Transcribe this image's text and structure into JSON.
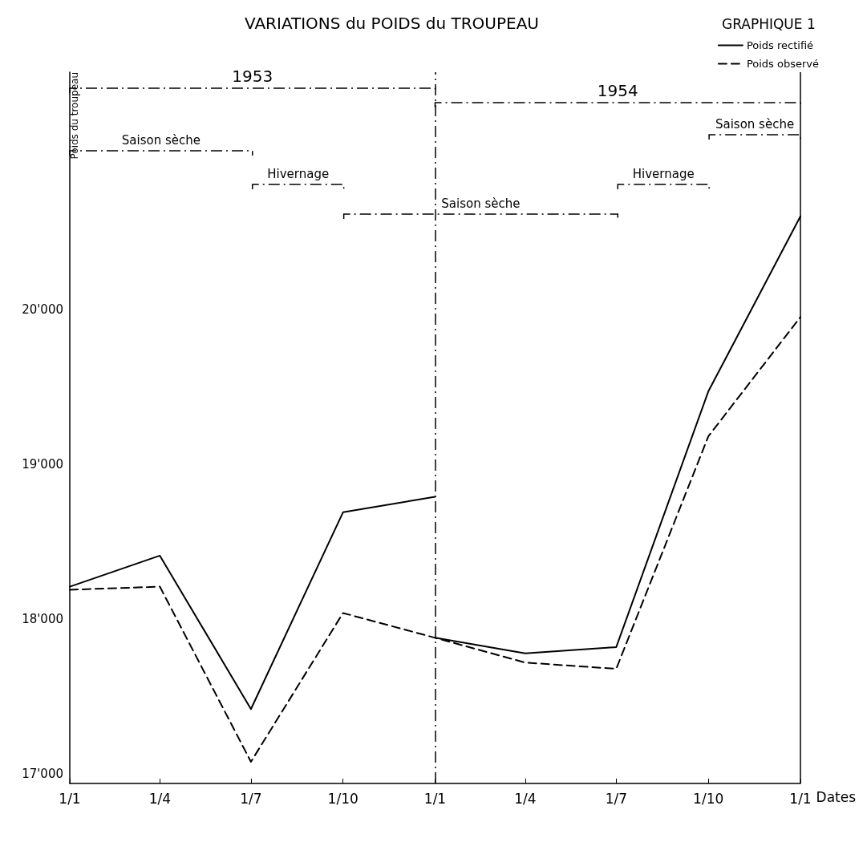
{
  "chart_data": {
    "type": "line",
    "title": "VARIATIONS du POIDS du TROUPEAU",
    "subtitle": "GRAPHIQUE 1",
    "xlabel": "Dates",
    "ylabel": "Poids du troupeau",
    "xlim": [
      "1953-01-01",
      "1955-01-01"
    ],
    "xticks": [
      {
        "value": "1953-01-01",
        "label": "1/1"
      },
      {
        "value": "1953-04-01",
        "label": "1/4"
      },
      {
        "value": "1953-07-01",
        "label": "1/7"
      },
      {
        "value": "1953-10-01",
        "label": "1/10"
      },
      {
        "value": "1954-01-01",
        "label": "1/1"
      },
      {
        "value": "1954-04-01",
        "label": "1/4"
      },
      {
        "value": "1954-07-01",
        "label": "1/7"
      },
      {
        "value": "1954-10-01",
        "label": "1/10"
      },
      {
        "value": "1955-01-01",
        "label": "1/1"
      }
    ],
    "ylim": [
      16940,
      21530
    ],
    "yticks": [
      {
        "value": 17000,
        "label": "17'000"
      },
      {
        "value": 18000,
        "label": "18'000"
      },
      {
        "value": 19000,
        "label": "19'000"
      },
      {
        "value": 20000,
        "label": "20'000"
      }
    ],
    "series": [
      {
        "name": "Poids rectifié",
        "color": "#000000",
        "line_style": "solid",
        "x": [
          "1953-01-01",
          "1953-04-01",
          "1953-07-01",
          "1953-10-01",
          "1954-01-01"
        ],
        "values": [
          18210,
          18410,
          17420,
          18690,
          18790
        ]
      },
      {
        "color": "#000000",
        "line_style": "solid",
        "x": [
          "1954-01-01",
          "1954-04-01",
          "1954-07-01",
          "1954-10-01",
          "1955-01-01"
        ],
        "values": [
          17880,
          17780,
          17820,
          19470,
          20600
        ]
      },
      {
        "name": "Poids observé",
        "color": "#000000",
        "line_style": "dashed",
        "x": [
          "1953-01-01",
          "1953-04-01",
          "1953-07-01",
          "1953-10-01",
          "1954-01-01",
          "1954-04-01",
          "1954-07-01",
          "1954-10-01",
          "1955-01-01"
        ],
        "values": [
          18190,
          18210,
          17080,
          18040,
          17880,
          17720,
          17680,
          19180,
          19950
        ]
      }
    ],
    "annotations": [
      "1953",
      "1954",
      "Saison sèche",
      "Hivernage",
      "Saison sèche",
      "Hivernage",
      "Saison sèche"
    ],
    "ref_lines": [
      {
        "axis": "x",
        "value": "1954-01-01",
        "color": "#000000",
        "line_style": "dashed"
      },
      {
        "axis": "x",
        "value": "1955-01-01",
        "color": "#000000",
        "line_style": "solid"
      }
    ],
    "legend": "top right",
    "grid": false,
    "marker": "none"
  }
}
